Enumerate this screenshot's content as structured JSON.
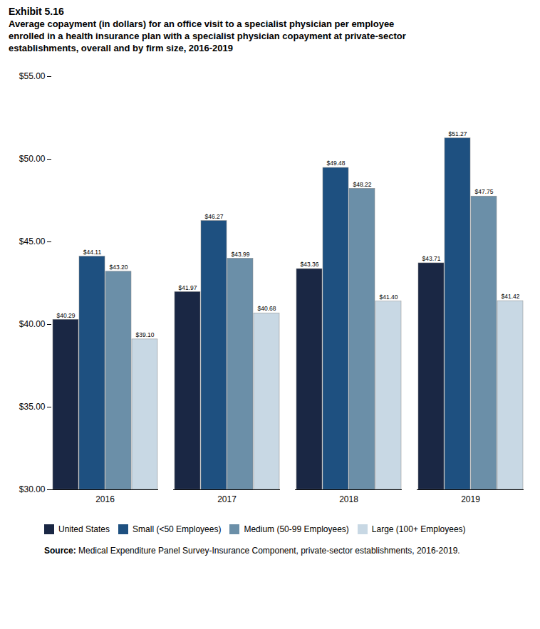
{
  "chart_data": {
    "type": "bar",
    "title": "Exhibit 5.16",
    "subtitle": "Average copayment (in dollars) for an office visit to a specialist physician per employee\nenrolled in a health insurance plan with a specialist physician copayment at private-sector\nestablishments, overall and by firm size, 2016-2019",
    "annotations": [
      "Source: Medical Expenditure Panel Survey-Insurance Component, private-sector establishments, 2016-2019."
    ],
    "categories": [
      "2016",
      "2017",
      "2018",
      "2019"
    ],
    "series": [
      {
        "name": "United States",
        "color": "#1a2744",
        "values": [
          40.29,
          41.97,
          43.36,
          43.71
        ],
        "value_labels": [
          "$40.29",
          "$41.97",
          "$43.36",
          "$43.71"
        ]
      },
      {
        "name": "Small (<50 Employees)",
        "color": "#1e5080",
        "values": [
          44.11,
          46.27,
          49.48,
          51.27
        ],
        "value_labels": [
          "$44.11",
          "$46.27",
          "$49.48",
          "$51.27"
        ]
      },
      {
        "name": "Medium (50-99 Employees)",
        "color": "#6b8fa8",
        "values": [
          43.2,
          43.99,
          48.22,
          47.75
        ],
        "value_labels": [
          "$43.20",
          "$43.99",
          "$48.22",
          "$47.75"
        ]
      },
      {
        "name": "Large (100+ Employees)",
        "color": "#c8d8e4",
        "values": [
          39.1,
          40.68,
          41.4,
          41.42
        ],
        "value_labels": [
          "$39.10",
          "$40.68",
          "$41.40",
          "$41.42"
        ]
      }
    ],
    "ylim": [
      30,
      55
    ],
    "yticks": [
      {
        "value": 30,
        "label": "$30.00"
      },
      {
        "value": 35,
        "label": "$35.00"
      },
      {
        "value": 40,
        "label": "$40.00"
      },
      {
        "value": 45,
        "label": "$45.00"
      },
      {
        "value": 50,
        "label": "$50.00"
      },
      {
        "value": 55,
        "label": "$55.00"
      }
    ],
    "grid": false,
    "legend": "bottom",
    "data_labels": true
  }
}
